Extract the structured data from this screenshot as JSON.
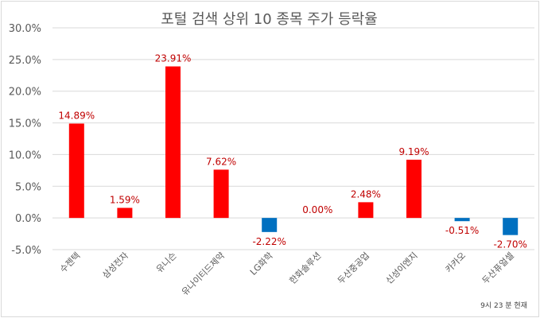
{
  "chart_data": {
    "type": "bar",
    "title": "포털 검색 상위 10 종목 주가 등락율",
    "footnote": "9시 23 분 현재",
    "categories": [
      "수젠텍",
      "삼성전자",
      "유니슨",
      "유나이티드제약",
      "LG화학",
      "한화솔루션",
      "두산중공업",
      "신성이엔지",
      "카카오",
      "두산퓨얼셀"
    ],
    "values": [
      14.89,
      1.59,
      23.91,
      7.62,
      -2.22,
      0.0,
      2.48,
      9.19,
      -0.51,
      -2.7
    ],
    "data_labels": [
      "14.89%",
      "1.59%",
      "23.91%",
      "7.62%",
      "-2.22%",
      "0.00%",
      "2.48%",
      "9.19%",
      "-0.51%",
      "-2.70%"
    ],
    "y_ticks": [
      "30.0%",
      "25.0%",
      "20.0%",
      "15.0%",
      "10.0%",
      "5.0%",
      "0.0%",
      "-5.0%"
    ],
    "ylim": [
      -5,
      30
    ],
    "grid": true,
    "legend": "none",
    "colors": {
      "positive": "#ff0000",
      "negative": "#0070c0",
      "label": "#c00000",
      "grid": "#d9d9d9",
      "axis_text": "#595959"
    }
  }
}
